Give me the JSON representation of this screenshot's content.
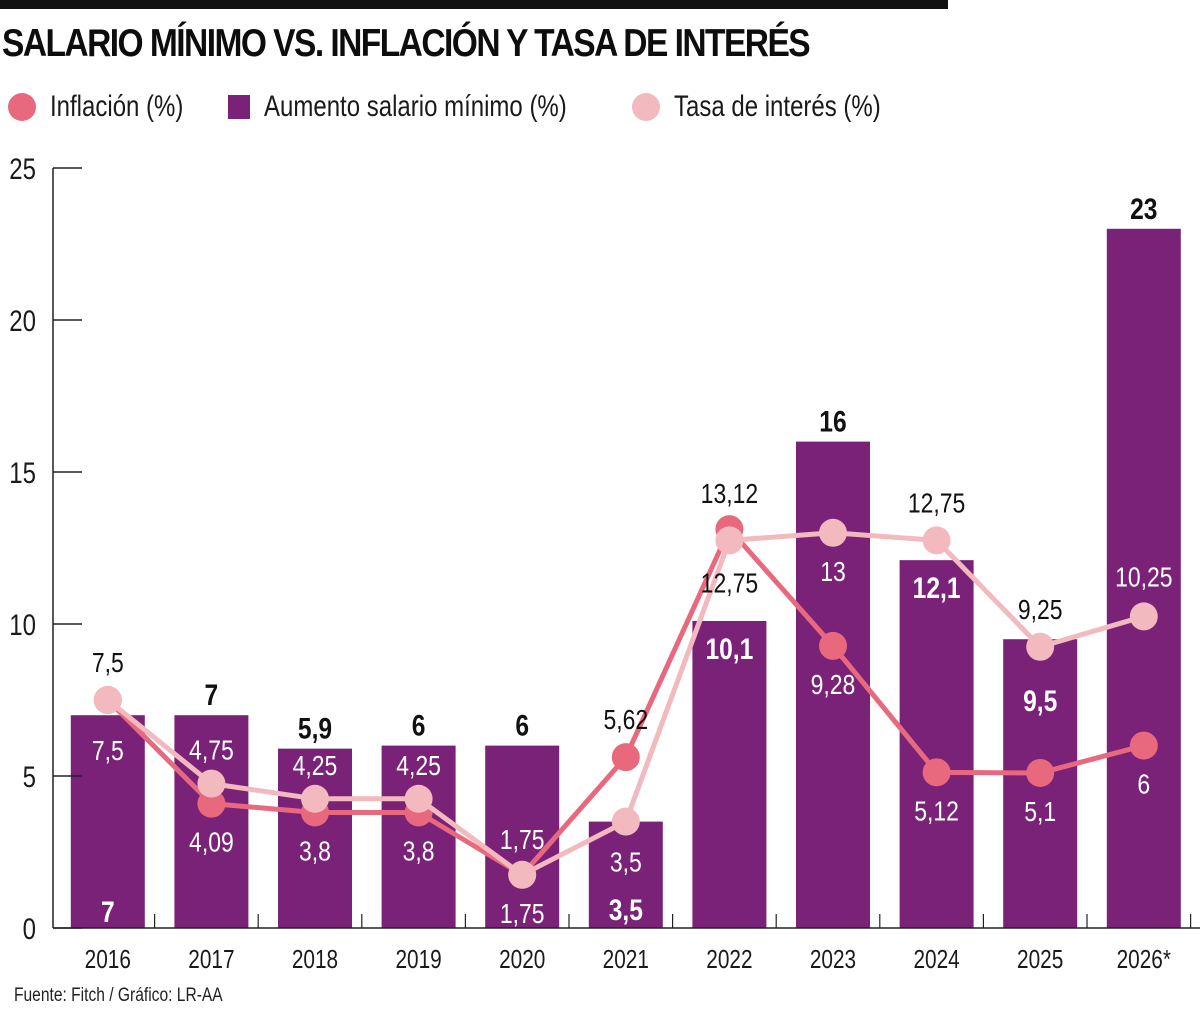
{
  "title": "SALARIO MÍNIMO VS. INFLACIÓN Y TASA DE INTERÉS",
  "legend": [
    {
      "label": "Inflación (%)",
      "shape": "circle",
      "color": "#e8687e"
    },
    {
      "label": "Aumento salario mínimo (%)",
      "shape": "square",
      "color": "#7a2278"
    },
    {
      "label": "Tasa de interés (%)",
      "shape": "circle",
      "color": "#f2b9bf"
    }
  ],
  "footer": "Fuente: Fitch / Gráfico: LR-AA",
  "chart_data": {
    "type": "bar",
    "title": "SALARIO MÍNIMO VS. INFLACIÓN Y TASA DE INTERÉS",
    "xlabel": "",
    "ylabel": "",
    "ylim": [
      0,
      25
    ],
    "yticks": [
      0,
      5,
      10,
      15,
      20,
      25
    ],
    "grid": false,
    "legend_position": "top-left",
    "categories": [
      "2016",
      "2017",
      "2018",
      "2019",
      "2020",
      "2021",
      "2022",
      "2023",
      "2024",
      "2025",
      "2026*"
    ],
    "series": [
      {
        "name": "Aumento salario mínimo (%)",
        "type": "bar",
        "color": "#7a2278",
        "values": [
          7,
          7,
          5.9,
          6,
          6,
          3.5,
          10.1,
          16,
          12.1,
          9.5,
          23
        ],
        "labels": [
          "7",
          "7",
          "5,9",
          "6",
          "6",
          "3,5",
          "10,1",
          "16",
          "12,1",
          "9,5",
          "23"
        ]
      },
      {
        "name": "Inflación (%)",
        "type": "line",
        "color": "#e8687e",
        "values": [
          7.5,
          4.09,
          3.8,
          3.8,
          1.75,
          5.62,
          13.12,
          9.28,
          5.12,
          5.1,
          6
        ],
        "labels": [
          "7,5",
          "4,09",
          "3,8",
          "3,8",
          "1,75",
          "5,62",
          "13,12",
          "9,28",
          "5,12",
          "5,1",
          "6"
        ]
      },
      {
        "name": "Tasa de interés (%)",
        "type": "line",
        "color": "#f2b9bf",
        "values": [
          7.5,
          4.75,
          4.25,
          4.25,
          1.75,
          3.5,
          12.75,
          13,
          12.75,
          9.25,
          10.25
        ],
        "labels": [
          "7,5",
          "4,75",
          "4,25",
          "4,25",
          "1,75",
          "3,5",
          "12,75",
          "13",
          "12,75",
          "9,25",
          "10,25"
        ]
      }
    ]
  }
}
